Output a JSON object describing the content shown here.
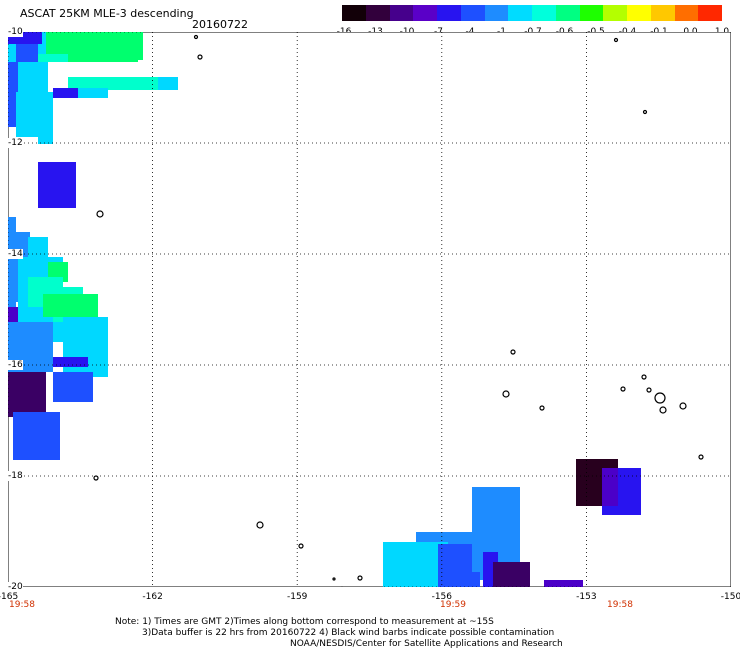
{
  "header": {
    "title": "ASCAT 25KM MLE-3 descending",
    "date": "20160722"
  },
  "colorbar": {
    "labels": [
      "-16",
      "-13",
      "-10",
      "-7",
      "-4",
      "-1",
      "-0.7",
      "-0.6",
      "-0.5",
      "-0.4",
      "-0.1",
      "0.0",
      "1.0"
    ],
    "colors": [
      "#120008",
      "#32003c",
      "#46008c",
      "#5a00c8",
      "#2814f0",
      "#1e50ff",
      "#1e8cff",
      "#00dcff",
      "#00ffdc",
      "#00ff82",
      "#1eff00",
      "#b4ff00",
      "#ffff00",
      "#ffc800",
      "#ff6e00",
      "#ff2800"
    ]
  },
  "map": {
    "lat_labels": [
      "-10",
      "-12",
      "-14",
      "-16",
      "-18",
      "-20"
    ],
    "lon_labels": [
      "-165",
      "-162",
      "-159",
      "-156",
      "-153",
      "-150"
    ],
    "time_labels": [
      "19:58",
      "19:59",
      "19:58"
    ],
    "lon_range": [
      -165,
      -150
    ],
    "lat_range": [
      -20,
      -10
    ],
    "grid_lines": "dotted",
    "swath_colors": {
      "cyan": "#00d8ff",
      "aqua": "#00ffcc",
      "green": "#00ff6e",
      "light_blue": "#1e8cff",
      "blue": "#1e50ff",
      "deep_blue": "#2814f0",
      "indigo": "#4b00c8",
      "dark_purple": "#3a0064",
      "near_black": "#28001e"
    }
  },
  "notes": {
    "line1": "Note: 1) Times are GMT 2)Times along bottom correspond to measurement at ~15S",
    "line2": "3)Data buffer is 22 hrs from 20160722 4) Black wind barbs indicate possible contamination",
    "line3": "NOAA/NESDIS/Center for Satellite Applications and Research"
  }
}
